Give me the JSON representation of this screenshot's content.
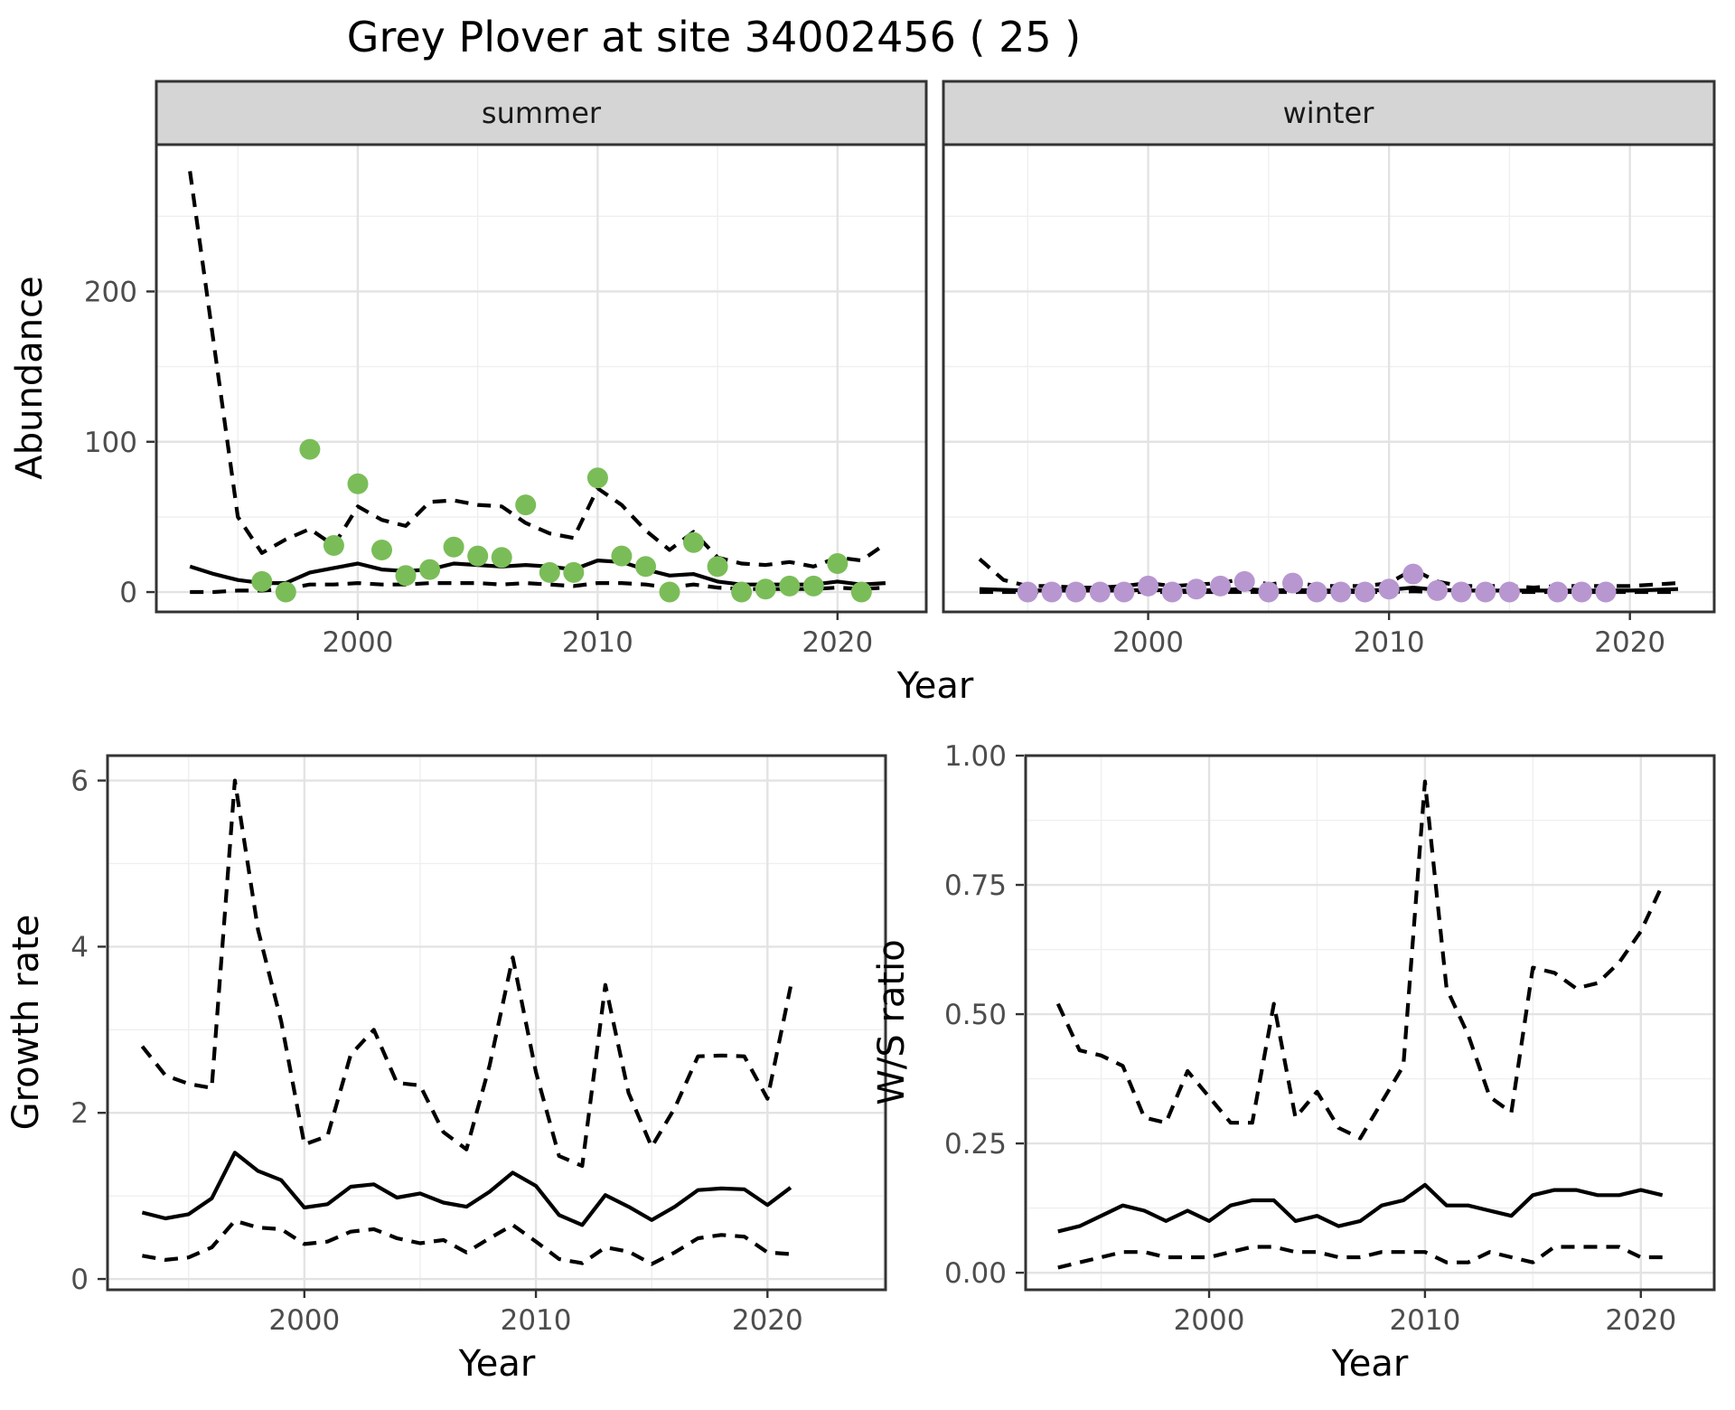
{
  "title": "Grey Plover at site 34002456 ( 25 )",
  "facet_labels": {
    "summer": "summer",
    "winter": "winter"
  },
  "axis_titles": {
    "y_top": "Abundance",
    "x_top": "Year",
    "y_bottom_left": "Growth rate",
    "y_bottom_right": "W/S ratio",
    "x_bottom_left": "Year",
    "x_bottom_right": "Year"
  },
  "colors": {
    "summer_point": "#7abd58",
    "winter_point": "#b897d0",
    "line": "#000000",
    "strip_bg": "#d5d5d5",
    "strip_border": "#333333",
    "panel_border": "#333333",
    "grid_major": "#e3e3e3",
    "grid_minor": "#efefef",
    "tick_text": "#4d4d4d",
    "background": "#ffffff"
  },
  "chart_data": [
    {
      "id": "abundance-summer",
      "type": "line",
      "facet": "summer",
      "ylabel": "Abundance",
      "xlabel": "Year",
      "xlim": [
        1991.6,
        2023.7
      ],
      "ylim": [
        -13.2,
        297.7
      ],
      "x_ticks": [
        2000,
        2010,
        2020
      ],
      "x_tick_labels": [
        "2000",
        "2010",
        "2020"
      ],
      "x_minor": [
        1995,
        2005,
        2015
      ],
      "y_ticks": [
        0,
        100,
        200
      ],
      "y_tick_labels": [
        "0",
        "100",
        "200"
      ],
      "y_minor": [
        50,
        150,
        250
      ],
      "x": [
        1993,
        1994,
        1995,
        1996,
        1997,
        1998,
        1999,
        2000,
        2001,
        2002,
        2003,
        2004,
        2005,
        2006,
        2007,
        2008,
        2009,
        2010,
        2011,
        2012,
        2013,
        2014,
        2015,
        2016,
        2017,
        2018,
        2019,
        2020,
        2021,
        2022
      ],
      "series": [
        {
          "name": "upper_ci",
          "style": "dashed",
          "values": [
            280,
            165,
            50,
            26,
            35,
            42,
            31,
            57,
            48,
            44,
            60,
            61,
            58,
            57,
            46,
            39,
            36,
            69,
            58,
            41,
            28,
            40,
            23,
            19,
            18,
            20,
            17,
            23,
            21,
            32
          ]
        },
        {
          "name": "mean",
          "style": "solid",
          "values": [
            17,
            12,
            8,
            6,
            6,
            13,
            16,
            19,
            15,
            14,
            15,
            19,
            18,
            17,
            18,
            17,
            15,
            21,
            20,
            15,
            11,
            12,
            7,
            5,
            5,
            5,
            5,
            7,
            5,
            6
          ]
        },
        {
          "name": "lower_ci",
          "style": "dashed",
          "values": [
            0,
            0,
            1,
            1,
            2,
            5,
            5,
            6,
            5,
            5,
            6,
            6,
            6,
            5,
            6,
            5,
            4,
            6,
            6,
            5,
            3,
            5,
            3,
            2,
            2,
            2,
            2,
            3,
            2,
            3
          ]
        }
      ],
      "points": {
        "name": "observed_counts",
        "color_key": "summer_point",
        "years": [
          1996,
          1997,
          1998,
          1999,
          2000,
          2001,
          2002,
          2003,
          2004,
          2005,
          2006,
          2007,
          2008,
          2009,
          2010,
          2011,
          2012,
          2013,
          2014,
          2015,
          2016,
          2017,
          2018,
          2019,
          2020,
          2021
        ],
        "values": [
          7,
          0,
          95,
          31,
          72,
          28,
          11,
          15,
          30,
          24,
          23,
          58,
          13,
          13,
          76,
          24,
          17,
          0,
          33,
          17,
          0,
          2,
          4,
          4,
          19,
          0
        ]
      }
    },
    {
      "id": "abundance-winter",
      "type": "line",
      "facet": "winter",
      "ylabel": "Abundance",
      "xlabel": "Year",
      "xlim": [
        1991.5,
        2023.5
      ],
      "ylim": [
        -13.2,
        297.7
      ],
      "x_ticks": [
        2000,
        2010,
        2020
      ],
      "x_tick_labels": [
        "2000",
        "2010",
        "2020"
      ],
      "x_minor": [
        1995,
        2005,
        2015
      ],
      "y_ticks": [
        0,
        100,
        200
      ],
      "y_tick_labels": [
        "0",
        "100",
        "200"
      ],
      "y_minor": [
        50,
        150,
        250
      ],
      "x": [
        1993,
        1994,
        1995,
        1996,
        1997,
        1998,
        1999,
        2000,
        2001,
        2002,
        2003,
        2004,
        2005,
        2006,
        2007,
        2008,
        2009,
        2010,
        2011,
        2012,
        2013,
        2014,
        2015,
        2016,
        2017,
        2018,
        2019,
        2020,
        2021,
        2022
      ],
      "series": [
        {
          "name": "upper_ci",
          "style": "dashed",
          "values": [
            22,
            8,
            4,
            4,
            3,
            3,
            4,
            6,
            4,
            5,
            6,
            9,
            5,
            7,
            4,
            4,
            4,
            6,
            15,
            7,
            4,
            4,
            4,
            3,
            4,
            4,
            4,
            4,
            5,
            6
          ]
        },
        {
          "name": "mean",
          "style": "solid",
          "values": [
            2,
            1.5,
            1,
            1,
            1,
            1,
            1,
            1.5,
            1,
            1,
            1.5,
            2,
            1,
            1.5,
            1,
            1,
            1,
            1.5,
            3,
            1.5,
            1,
            1,
            1,
            1,
            1,
            1,
            1,
            1,
            1.5,
            2
          ]
        },
        {
          "name": "lower_ci",
          "style": "dashed",
          "values": [
            0,
            0,
            0,
            0,
            0,
            0,
            0,
            0,
            0,
            0,
            0,
            0,
            0,
            0,
            0,
            0,
            0,
            0,
            0.5,
            0,
            0,
            0,
            0,
            0,
            0,
            0,
            0,
            0,
            0,
            0
          ]
        }
      ],
      "points": {
        "name": "observed_counts",
        "color_key": "winter_point",
        "years": [
          1995,
          1996,
          1997,
          1998,
          1999,
          2000,
          2001,
          2002,
          2003,
          2004,
          2005,
          2006,
          2007,
          2008,
          2009,
          2010,
          2011,
          2012,
          2013,
          2014,
          2015,
          2017,
          2018,
          2019
        ],
        "values": [
          0,
          0,
          0,
          0,
          0,
          4,
          0,
          2,
          4,
          7,
          0,
          6,
          0,
          0,
          0,
          2,
          12,
          1,
          0,
          0,
          0,
          0,
          0,
          0
        ]
      }
    },
    {
      "id": "growth-rate",
      "type": "line",
      "facet": null,
      "ylabel": "Growth rate",
      "xlabel": "Year",
      "xlim": [
        1991.5,
        2025.1
      ],
      "ylim": [
        -0.13,
        6.3
      ],
      "x_ticks": [
        2000,
        2010,
        2020
      ],
      "x_tick_labels": [
        "2000",
        "2010",
        "2020"
      ],
      "x_minor": [
        1995,
        2005,
        2015,
        2025
      ],
      "y_ticks": [
        0,
        2,
        4,
        6
      ],
      "y_tick_labels": [
        "0",
        "2",
        "4",
        "6"
      ],
      "y_minor": [
        1,
        3,
        5
      ],
      "x": [
        1993,
        1994,
        1995,
        1996,
        1997,
        1998,
        1999,
        2000,
        2001,
        2002,
        2003,
        2004,
        2005,
        2006,
        2007,
        2008,
        2009,
        2010,
        2011,
        2012,
        2013,
        2014,
        2015,
        2016,
        2017,
        2018,
        2019,
        2020,
        2021
      ],
      "series": [
        {
          "name": "upper_ci",
          "style": "dashed",
          "values": [
            2.8,
            2.45,
            2.35,
            2.3,
            6.0,
            4.2,
            3.1,
            1.62,
            1.72,
            2.7,
            3.0,
            2.36,
            2.33,
            1.77,
            1.56,
            2.57,
            3.87,
            2.49,
            1.48,
            1.36,
            3.54,
            2.24,
            1.59,
            2.06,
            2.68,
            2.69,
            2.68,
            2.17,
            3.52
          ]
        },
        {
          "name": "mean",
          "style": "solid",
          "values": [
            0.8,
            0.73,
            0.78,
            0.97,
            1.52,
            1.3,
            1.19,
            0.86,
            0.9,
            1.11,
            1.14,
            0.98,
            1.03,
            0.92,
            0.87,
            1.05,
            1.28,
            1.12,
            0.77,
            0.65,
            1.01,
            0.87,
            0.71,
            0.87,
            1.07,
            1.09,
            1.08,
            0.89,
            1.1
          ]
        },
        {
          "name": "lower_ci",
          "style": "dashed",
          "values": [
            0.28,
            0.23,
            0.26,
            0.38,
            0.7,
            0.62,
            0.6,
            0.42,
            0.45,
            0.57,
            0.6,
            0.49,
            0.43,
            0.47,
            0.32,
            0.49,
            0.65,
            0.45,
            0.24,
            0.19,
            0.38,
            0.33,
            0.18,
            0.32,
            0.49,
            0.53,
            0.51,
            0.32,
            0.3
          ]
        }
      ],
      "points": null
    },
    {
      "id": "ws-ratio",
      "type": "line",
      "facet": null,
      "ylabel": "W/S ratio",
      "xlabel": "Year",
      "xlim": [
        1991.5,
        2023.4
      ],
      "ylim": [
        -0.033,
        1.0
      ],
      "x_ticks": [
        2000,
        2010,
        2020
      ],
      "x_tick_labels": [
        "2000",
        "2010",
        "2020"
      ],
      "x_minor": [
        1995,
        2005,
        2015
      ],
      "y_ticks": [
        0,
        0.25,
        0.5,
        0.75,
        1.0
      ],
      "y_tick_labels": [
        "0.00",
        "0.25",
        "0.50",
        "0.75",
        "1.00"
      ],
      "y_minor": [
        0.125,
        0.375,
        0.625,
        0.875
      ],
      "x": [
        1993,
        1994,
        1995,
        1996,
        1997,
        1998,
        1999,
        2000,
        2001,
        2002,
        2003,
        2004,
        2005,
        2006,
        2007,
        2008,
        2009,
        2010,
        2011,
        2012,
        2013,
        2014,
        2015,
        2016,
        2017,
        2018,
        2019,
        2020,
        2021
      ],
      "series": [
        {
          "name": "upper_ci",
          "style": "dashed",
          "values": [
            0.52,
            0.43,
            0.42,
            0.4,
            0.3,
            0.29,
            0.39,
            0.34,
            0.29,
            0.29,
            0.52,
            0.3,
            0.35,
            0.28,
            0.26,
            0.33,
            0.4,
            0.95,
            0.55,
            0.46,
            0.34,
            0.31,
            0.59,
            0.58,
            0.55,
            0.56,
            0.6,
            0.66,
            0.75
          ]
        },
        {
          "name": "mean",
          "style": "solid",
          "values": [
            0.08,
            0.09,
            0.11,
            0.13,
            0.12,
            0.1,
            0.12,
            0.1,
            0.13,
            0.14,
            0.14,
            0.1,
            0.11,
            0.09,
            0.1,
            0.13,
            0.14,
            0.17,
            0.13,
            0.13,
            0.12,
            0.11,
            0.15,
            0.16,
            0.16,
            0.15,
            0.15,
            0.16,
            0.15
          ]
        },
        {
          "name": "lower_ci",
          "style": "dashed",
          "values": [
            0.01,
            0.02,
            0.03,
            0.04,
            0.04,
            0.03,
            0.03,
            0.03,
            0.04,
            0.05,
            0.05,
            0.04,
            0.04,
            0.03,
            0.03,
            0.04,
            0.04,
            0.04,
            0.02,
            0.02,
            0.04,
            0.03,
            0.02,
            0.05,
            0.05,
            0.05,
            0.05,
            0.03,
            0.03
          ]
        }
      ],
      "points": null
    }
  ]
}
